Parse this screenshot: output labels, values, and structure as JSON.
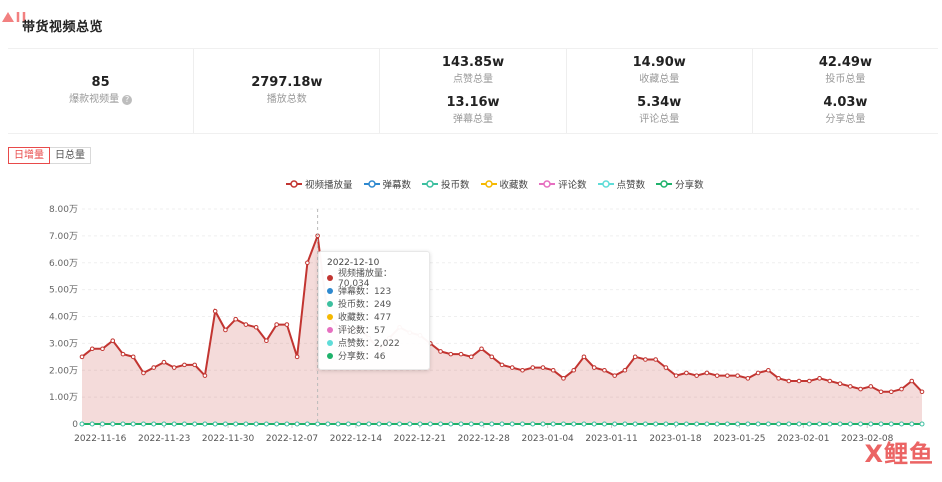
{
  "page": {
    "title": "带货视频总览"
  },
  "summary": [
    {
      "value": "85",
      "label": "爆款视频量",
      "help": true
    },
    {
      "value": "2797.18w",
      "label": "播放总数"
    },
    {
      "top": {
        "value": "143.85w",
        "label": "点赞总量"
      },
      "bottom": {
        "value": "13.16w",
        "label": "弹幕总量"
      }
    },
    {
      "top": {
        "value": "14.90w",
        "label": "收藏总量"
      },
      "bottom": {
        "value": "5.34w",
        "label": "评论总量"
      }
    },
    {
      "top": {
        "value": "42.49w",
        "label": "投币总量"
      },
      "bottom": {
        "value": "4.03w",
        "label": "分享总量"
      }
    }
  ],
  "toggle": {
    "daily_increase": "日增量",
    "daily_total": "日总量",
    "active": "daily_increase"
  },
  "watermark": "X鲤鱼",
  "tooltip": {
    "date": "2022-12-10",
    "rows": [
      {
        "label": "视频播放量：70,034",
        "color": "#c23531"
      },
      {
        "label": "弹幕数：123",
        "color": "#2f89cf"
      },
      {
        "label": "投币数：249",
        "color": "#3cbf9f"
      },
      {
        "label": "收藏数：477",
        "color": "#f5b800"
      },
      {
        "label": "评论数：57",
        "color": "#e66fc0"
      },
      {
        "label": "点赞数：2,022",
        "color": "#5fdcd8"
      },
      {
        "label": "分享数：46",
        "color": "#1fb26b"
      }
    ]
  },
  "chart_data": {
    "type": "area",
    "title": "",
    "xlabel": "",
    "ylabel": "",
    "ylim": [
      0,
      80000
    ],
    "ytick_labels": [
      "0",
      "1.00万",
      "2.00万",
      "3.00万",
      "4.00万",
      "5.00万",
      "6.00万",
      "7.00万",
      "8.00万"
    ],
    "xtick_labels": [
      "2022-11-16",
      "2022-11-23",
      "2022-11-30",
      "2022-12-07",
      "2022-12-14",
      "2022-12-21",
      "2022-12-28",
      "2023-01-04",
      "2023-01-11",
      "2023-01-18",
      "2023-01-25",
      "2023-02-01",
      "2023-02-08"
    ],
    "x_start": "2022-11-14",
    "x_end": "2023-02-14",
    "grid": true,
    "legend_position": "top-center",
    "series": [
      {
        "name": "视频播放量",
        "color": "#c23531",
        "values": [
          25000,
          28000,
          28000,
          31000,
          26000,
          25000,
          19000,
          21000,
          23000,
          21000,
          22000,
          22000,
          18000,
          42000,
          35000,
          39000,
          37000,
          36000,
          31000,
          37000,
          37000,
          25000,
          60000,
          70034,
          40000,
          36000,
          35000,
          36000,
          32000,
          28000,
          32000,
          36000,
          34000,
          33000,
          30000,
          27000,
          26000,
          26000,
          25000,
          28000,
          25000,
          22000,
          21000,
          20000,
          21000,
          21000,
          20000,
          17000,
          20000,
          25000,
          21000,
          20000,
          18000,
          20000,
          25000,
          24000,
          24000,
          21000,
          18000,
          19000,
          18000,
          19000,
          18000,
          18000,
          18000,
          17000,
          19000,
          20000,
          17000,
          16000,
          16000,
          16000,
          17000,
          16000,
          15000,
          14000,
          13000,
          14000,
          12000,
          12000,
          13000,
          16000,
          12000
        ]
      },
      {
        "name": "弹幕数",
        "color": "#2f89cf",
        "values": []
      },
      {
        "name": "投币数",
        "color": "#3cbf9f",
        "values": []
      },
      {
        "name": "收藏数",
        "color": "#f5b800",
        "values": []
      },
      {
        "name": "评论数",
        "color": "#e66fc0",
        "values": []
      },
      {
        "name": "点赞数",
        "color": "#5fdcd8",
        "values": []
      },
      {
        "name": "分享数",
        "color": "#1fb26b",
        "values": []
      }
    ]
  }
}
